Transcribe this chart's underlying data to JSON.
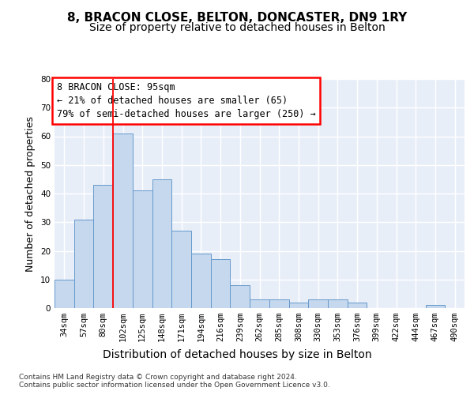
{
  "title1": "8, BRACON CLOSE, BELTON, DONCASTER, DN9 1RY",
  "title2": "Size of property relative to detached houses in Belton",
  "xlabel": "Distribution of detached houses by size in Belton",
  "ylabel": "Number of detached properties",
  "categories": [
    "34sqm",
    "57sqm",
    "80sqm",
    "102sqm",
    "125sqm",
    "148sqm",
    "171sqm",
    "194sqm",
    "216sqm",
    "239sqm",
    "262sqm",
    "285sqm",
    "308sqm",
    "330sqm",
    "353sqm",
    "376sqm",
    "399sqm",
    "422sqm",
    "444sqm",
    "467sqm",
    "490sqm"
  ],
  "values": [
    10,
    31,
    43,
    61,
    41,
    45,
    27,
    19,
    17,
    8,
    3,
    3,
    2,
    3,
    3,
    2,
    0,
    0,
    0,
    1,
    0
  ],
  "bar_color": "#c5d8ed",
  "bar_edge_color": "#6699cc",
  "ylim": [
    0,
    80
  ],
  "yticks": [
    0,
    10,
    20,
    30,
    40,
    50,
    60,
    70,
    80
  ],
  "red_line_x": 2.5,
  "annotation_box_text": "8 BRACON CLOSE: 95sqm\n← 21% of detached houses are smaller (65)\n79% of semi-detached houses are larger (250) →",
  "footer_text": "Contains HM Land Registry data © Crown copyright and database right 2024.\nContains public sector information licensed under the Open Government Licence v3.0.",
  "background_color": "#e8eef8",
  "grid_color": "#ffffff",
  "title1_fontsize": 11,
  "title2_fontsize": 10,
  "tick_fontsize": 7.5,
  "ylabel_fontsize": 9,
  "xlabel_fontsize": 10,
  "annot_fontsize": 8.5,
  "footer_fontsize": 6.5
}
